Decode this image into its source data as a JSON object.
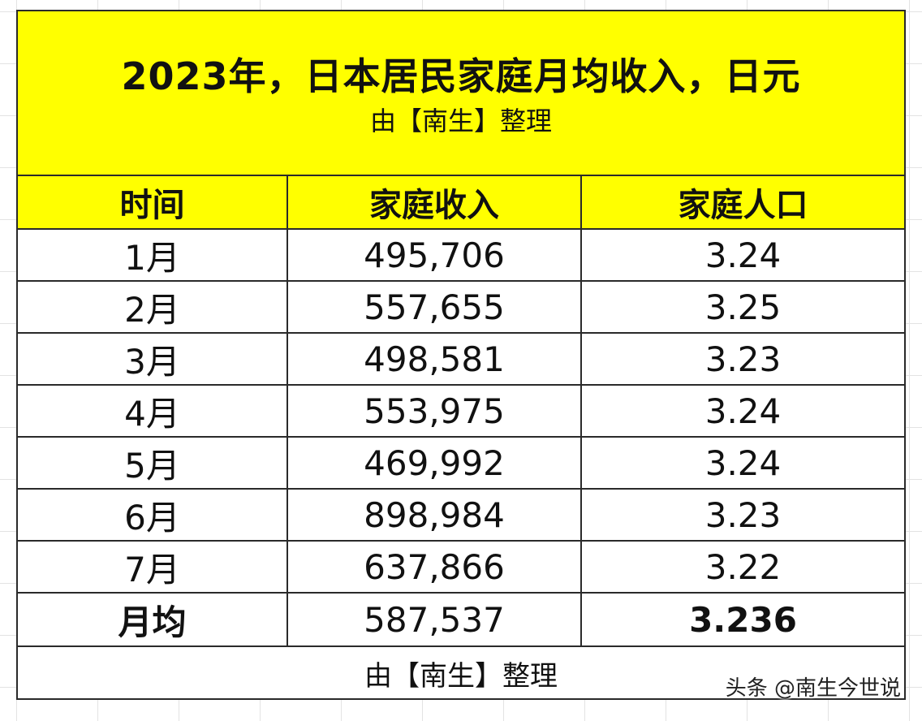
{
  "title": "2023年，日本居民家庭月均收入，日元",
  "subtitle": "由【南生】整理",
  "columns": [
    "时间",
    "家庭收入",
    "家庭人口"
  ],
  "rows": [
    {
      "month": "1月",
      "income": "495,706",
      "persons": "3.24"
    },
    {
      "month": "2月",
      "income": "557,655",
      "persons": "3.25"
    },
    {
      "month": "3月",
      "income": "498,581",
      "persons": "3.23"
    },
    {
      "month": "4月",
      "income": "553,975",
      "persons": "3.24"
    },
    {
      "month": "5月",
      "income": "469,992",
      "persons": "3.24"
    },
    {
      "month": "6月",
      "income": "898,984",
      "persons": "3.23"
    },
    {
      "month": "7月",
      "income": "637,866",
      "persons": "3.22"
    }
  ],
  "average": {
    "label": "月均",
    "income": "587,537",
    "persons": "3.236"
  },
  "footer": "由【南生】整理",
  "watermark": "头条 @南生今世说",
  "colors": {
    "header_bg": "#ffff00",
    "border": "#2a2a2a"
  }
}
